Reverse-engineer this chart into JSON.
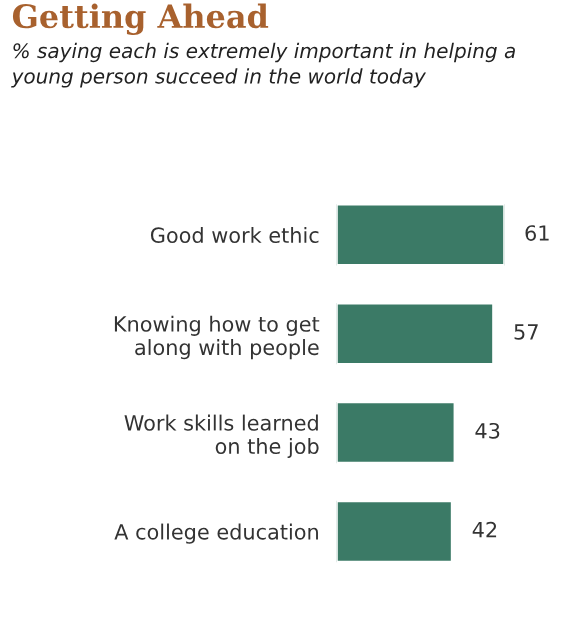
{
  "chart_data": {
    "type": "bar",
    "orientation": "horizontal",
    "title": "Getting Ahead",
    "subtitle": "% saying each is extremely important in helping a\nyoung person succeed in the world today",
    "categories": [
      "Good work ethic",
      "Knowing how to get\nalong with people",
      "Work skills learned\non the job",
      "A college education"
    ],
    "values": [
      61,
      57,
      43,
      42
    ],
    "color": "#3b7a66",
    "data_labels": true,
    "grid": false,
    "legend": false
  }
}
